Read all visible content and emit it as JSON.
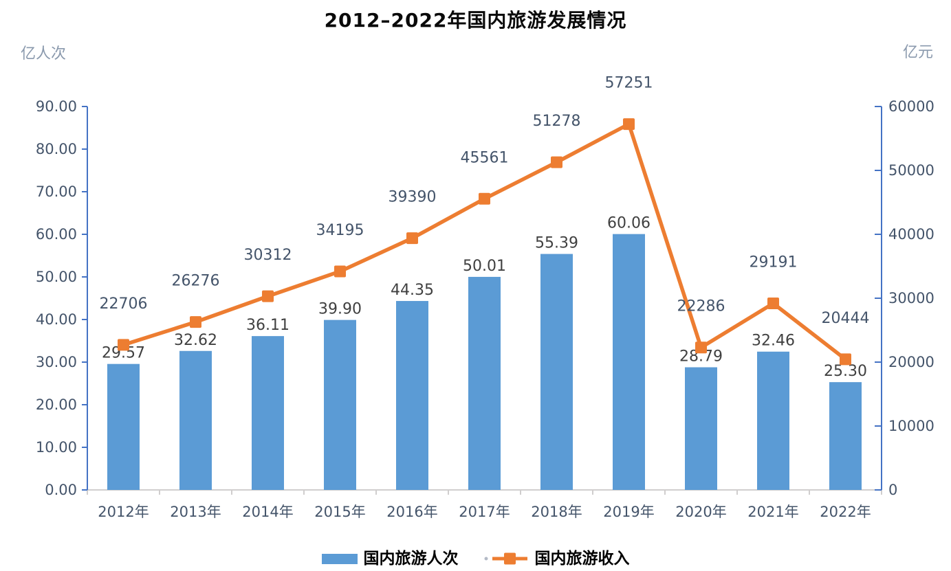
{
  "chart_data": {
    "type": "bar+line combo",
    "title": "2012–2022年国内旅游发展情况",
    "categories": [
      "2012年",
      "2013年",
      "2014年",
      "2015年",
      "2016年",
      "2017年",
      "2018年",
      "2019年",
      "2020年",
      "2021年",
      "2022年"
    ],
    "series": [
      {
        "name": "国内旅游人次",
        "type": "bar",
        "axis": "left",
        "color": "#5B9BD5",
        "values": [
          29.57,
          32.62,
          36.11,
          39.9,
          44.35,
          50.01,
          55.39,
          60.06,
          28.79,
          32.46,
          25.3
        ],
        "labels": [
          "29.57",
          "32.62",
          "36.11",
          "39.90",
          "44.35",
          "50.01",
          "55.39",
          "60.06",
          "28.79",
          "32.46",
          "25.30"
        ]
      },
      {
        "name": "国内旅游收入",
        "type": "line",
        "axis": "right",
        "color": "#ED7D31",
        "marker": "square",
        "values": [
          22706,
          26276,
          30312,
          34195,
          39390,
          45561,
          51278,
          57251,
          22286,
          29191,
          20444
        ],
        "labels": [
          "22706",
          "26276",
          "30312",
          "34195",
          "39390",
          "45561",
          "51278",
          "57251",
          "22286",
          "29191",
          "20444"
        ]
      }
    ],
    "left_axis": {
      "unit": "亿人次",
      "min": 0,
      "max": 90,
      "step": 10,
      "ticks": [
        "0.00",
        "10.00",
        "20.00",
        "30.00",
        "40.00",
        "50.00",
        "60.00",
        "70.00",
        "80.00",
        "90.00"
      ]
    },
    "right_axis": {
      "unit": "亿元",
      "min": 0,
      "max": 60000,
      "step": 10000,
      "ticks": [
        "0",
        "10000",
        "20000",
        "30000",
        "40000",
        "50000",
        "60000"
      ]
    },
    "grid": "off",
    "legend_position": "bottom-center",
    "colors": {
      "bar": "#5B9BD5",
      "line": "#ED7D31",
      "y_axis_line": "#4472C4",
      "x_axis_line": "#D0CECE",
      "tick_label": "#44546A",
      "bar_label": "#404040",
      "line_label": "#44546A",
      "unit_label": "#8A99AD",
      "title": "#0A0A0A"
    }
  }
}
